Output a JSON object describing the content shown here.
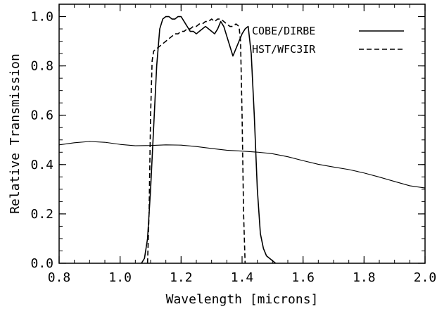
{
  "chart_data": {
    "type": "line",
    "title": "",
    "xlabel": "Wavelength [microns]",
    "ylabel": "Relative Transmission",
    "xlim": [
      0.8,
      2.0
    ],
    "ylim": [
      0.0,
      1.05
    ],
    "x_ticks": [
      "0.8",
      "1.0",
      "1.2",
      "1.4",
      "1.6",
      "1.8",
      "2.0"
    ],
    "y_ticks": [
      "0.0",
      "0.2",
      "0.4",
      "0.6",
      "0.8",
      "1.0"
    ],
    "grid": false,
    "legend_position": "top-right",
    "series": [
      {
        "name": "COBE/DIRBE",
        "style": "solid",
        "x": [
          1.07,
          1.08,
          1.09,
          1.1,
          1.11,
          1.12,
          1.13,
          1.14,
          1.15,
          1.16,
          1.17,
          1.18,
          1.19,
          1.2,
          1.21,
          1.22,
          1.23,
          1.24,
          1.25,
          1.26,
          1.27,
          1.28,
          1.29,
          1.3,
          1.31,
          1.32,
          1.33,
          1.34,
          1.35,
          1.36,
          1.37,
          1.38,
          1.39,
          1.4,
          1.41,
          1.42,
          1.43,
          1.44,
          1.45,
          1.46,
          1.47,
          1.48,
          1.49,
          1.5,
          1.51
        ],
        "y": [
          0.0,
          0.02,
          0.1,
          0.3,
          0.55,
          0.8,
          0.95,
          0.99,
          1.0,
          1.0,
          0.99,
          0.99,
          1.0,
          1.0,
          0.98,
          0.96,
          0.94,
          0.94,
          0.93,
          0.94,
          0.95,
          0.96,
          0.95,
          0.94,
          0.93,
          0.95,
          0.98,
          0.96,
          0.92,
          0.88,
          0.84,
          0.87,
          0.9,
          0.93,
          0.95,
          0.96,
          0.85,
          0.6,
          0.3,
          0.12,
          0.06,
          0.03,
          0.02,
          0.01,
          0.0
        ]
      },
      {
        "name": "HST/WFC3IR",
        "style": "dashed",
        "x": [
          1.09,
          1.095,
          1.1,
          1.105,
          1.11,
          1.12,
          1.13,
          1.14,
          1.15,
          1.16,
          1.17,
          1.18,
          1.19,
          1.2,
          1.21,
          1.22,
          1.23,
          1.24,
          1.25,
          1.26,
          1.27,
          1.28,
          1.29,
          1.3,
          1.31,
          1.32,
          1.33,
          1.34,
          1.35,
          1.36,
          1.37,
          1.38,
          1.39,
          1.395,
          1.4,
          1.405,
          1.41
        ],
        "y": [
          0.0,
          0.2,
          0.6,
          0.82,
          0.86,
          0.87,
          0.88,
          0.89,
          0.9,
          0.91,
          0.92,
          0.93,
          0.93,
          0.94,
          0.94,
          0.95,
          0.95,
          0.96,
          0.96,
          0.97,
          0.97,
          0.98,
          0.98,
          0.99,
          0.98,
          0.99,
          0.99,
          0.98,
          0.97,
          0.96,
          0.96,
          0.97,
          0.96,
          0.9,
          0.6,
          0.2,
          0.0
        ]
      },
      {
        "name": "",
        "style": "solid-thin",
        "x": [
          0.8,
          0.85,
          0.9,
          0.95,
          1.0,
          1.05,
          1.1,
          1.15,
          1.2,
          1.25,
          1.3,
          1.35,
          1.4,
          1.45,
          1.5,
          1.55,
          1.6,
          1.65,
          1.7,
          1.75,
          1.8,
          1.85,
          1.9,
          1.95,
          2.0
        ],
        "y": [
          0.48,
          0.485,
          0.49,
          0.49,
          0.485,
          0.48,
          0.478,
          0.477,
          0.475,
          0.472,
          0.468,
          0.462,
          0.456,
          0.448,
          0.44,
          0.43,
          0.418,
          0.405,
          0.392,
          0.378,
          0.362,
          0.347,
          0.333,
          0.318,
          0.305
        ]
      }
    ]
  }
}
